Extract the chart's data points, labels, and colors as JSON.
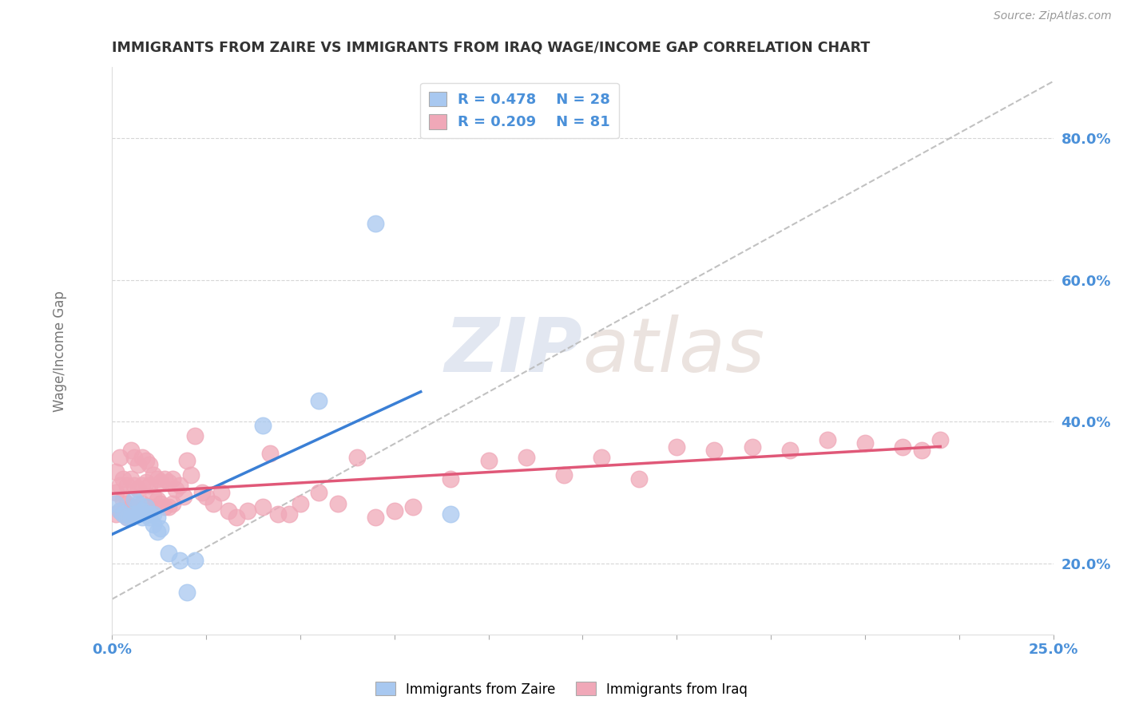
{
  "title": "IMMIGRANTS FROM ZAIRE VS IMMIGRANTS FROM IRAQ WAGE/INCOME GAP CORRELATION CHART",
  "source": "Source: ZipAtlas.com",
  "ylabel": "Wage/Income Gap",
  "y_ticks": [
    0.2,
    0.4,
    0.6,
    0.8
  ],
  "y_tick_labels": [
    "20.0%",
    "40.0%",
    "60.0%",
    "80.0%"
  ],
  "xlim": [
    0.0,
    0.25
  ],
  "ylim": [
    0.1,
    0.9
  ],
  "legend_r1": "R = 0.478",
  "legend_n1": "N = 28",
  "legend_r2": "R = 0.209",
  "legend_n2": "N = 81",
  "color_zaire": "#a8c8f0",
  "color_iraq": "#f0a8b8",
  "line_color_zaire": "#3a7fd5",
  "line_color_iraq": "#e05878",
  "ref_line_color": "#bbbbbb",
  "watermark": "ZIPatlas",
  "background_color": "#ffffff",
  "title_color": "#333333",
  "tick_color": "#4a90d9",
  "ylabel_color": "#777777",
  "source_color": "#999999",
  "zaire_x": [
    0.001,
    0.002,
    0.003,
    0.004,
    0.005,
    0.006,
    0.006,
    0.007,
    0.007,
    0.008,
    0.008,
    0.009,
    0.009,
    0.01,
    0.01,
    0.011,
    0.011,
    0.012,
    0.012,
    0.013,
    0.015,
    0.018,
    0.02,
    0.022,
    0.04,
    0.055,
    0.07,
    0.09
  ],
  "zaire_y": [
    0.285,
    0.275,
    0.27,
    0.265,
    0.265,
    0.29,
    0.27,
    0.285,
    0.27,
    0.275,
    0.265,
    0.28,
    0.27,
    0.265,
    0.27,
    0.255,
    0.27,
    0.245,
    0.265,
    0.25,
    0.215,
    0.205,
    0.16,
    0.205,
    0.395,
    0.43,
    0.68,
    0.27
  ],
  "iraq_x": [
    0.001,
    0.001,
    0.001,
    0.002,
    0.002,
    0.002,
    0.003,
    0.003,
    0.003,
    0.004,
    0.004,
    0.004,
    0.005,
    0.005,
    0.005,
    0.006,
    0.006,
    0.006,
    0.007,
    0.007,
    0.007,
    0.008,
    0.008,
    0.008,
    0.009,
    0.009,
    0.009,
    0.01,
    0.01,
    0.01,
    0.011,
    0.011,
    0.012,
    0.012,
    0.013,
    0.013,
    0.014,
    0.014,
    0.015,
    0.015,
    0.016,
    0.016,
    0.017,
    0.018,
    0.019,
    0.02,
    0.021,
    0.022,
    0.024,
    0.025,
    0.027,
    0.029,
    0.031,
    0.033,
    0.036,
    0.04,
    0.042,
    0.044,
    0.047,
    0.05,
    0.055,
    0.06,
    0.065,
    0.07,
    0.075,
    0.08,
    0.09,
    0.1,
    0.11,
    0.12,
    0.13,
    0.14,
    0.15,
    0.16,
    0.17,
    0.18,
    0.19,
    0.2,
    0.21,
    0.215,
    0.22
  ],
  "iraq_y": [
    0.33,
    0.3,
    0.27,
    0.35,
    0.31,
    0.275,
    0.32,
    0.29,
    0.27,
    0.31,
    0.285,
    0.265,
    0.36,
    0.32,
    0.28,
    0.35,
    0.31,
    0.28,
    0.34,
    0.305,
    0.275,
    0.35,
    0.31,
    0.285,
    0.345,
    0.315,
    0.28,
    0.34,
    0.31,
    0.28,
    0.325,
    0.295,
    0.32,
    0.29,
    0.315,
    0.285,
    0.32,
    0.28,
    0.315,
    0.28,
    0.32,
    0.285,
    0.305,
    0.31,
    0.295,
    0.345,
    0.325,
    0.38,
    0.3,
    0.295,
    0.285,
    0.3,
    0.275,
    0.265,
    0.275,
    0.28,
    0.355,
    0.27,
    0.27,
    0.285,
    0.3,
    0.285,
    0.35,
    0.265,
    0.275,
    0.28,
    0.32,
    0.345,
    0.35,
    0.325,
    0.35,
    0.32,
    0.365,
    0.36,
    0.365,
    0.36,
    0.375,
    0.37,
    0.365,
    0.36,
    0.375
  ]
}
